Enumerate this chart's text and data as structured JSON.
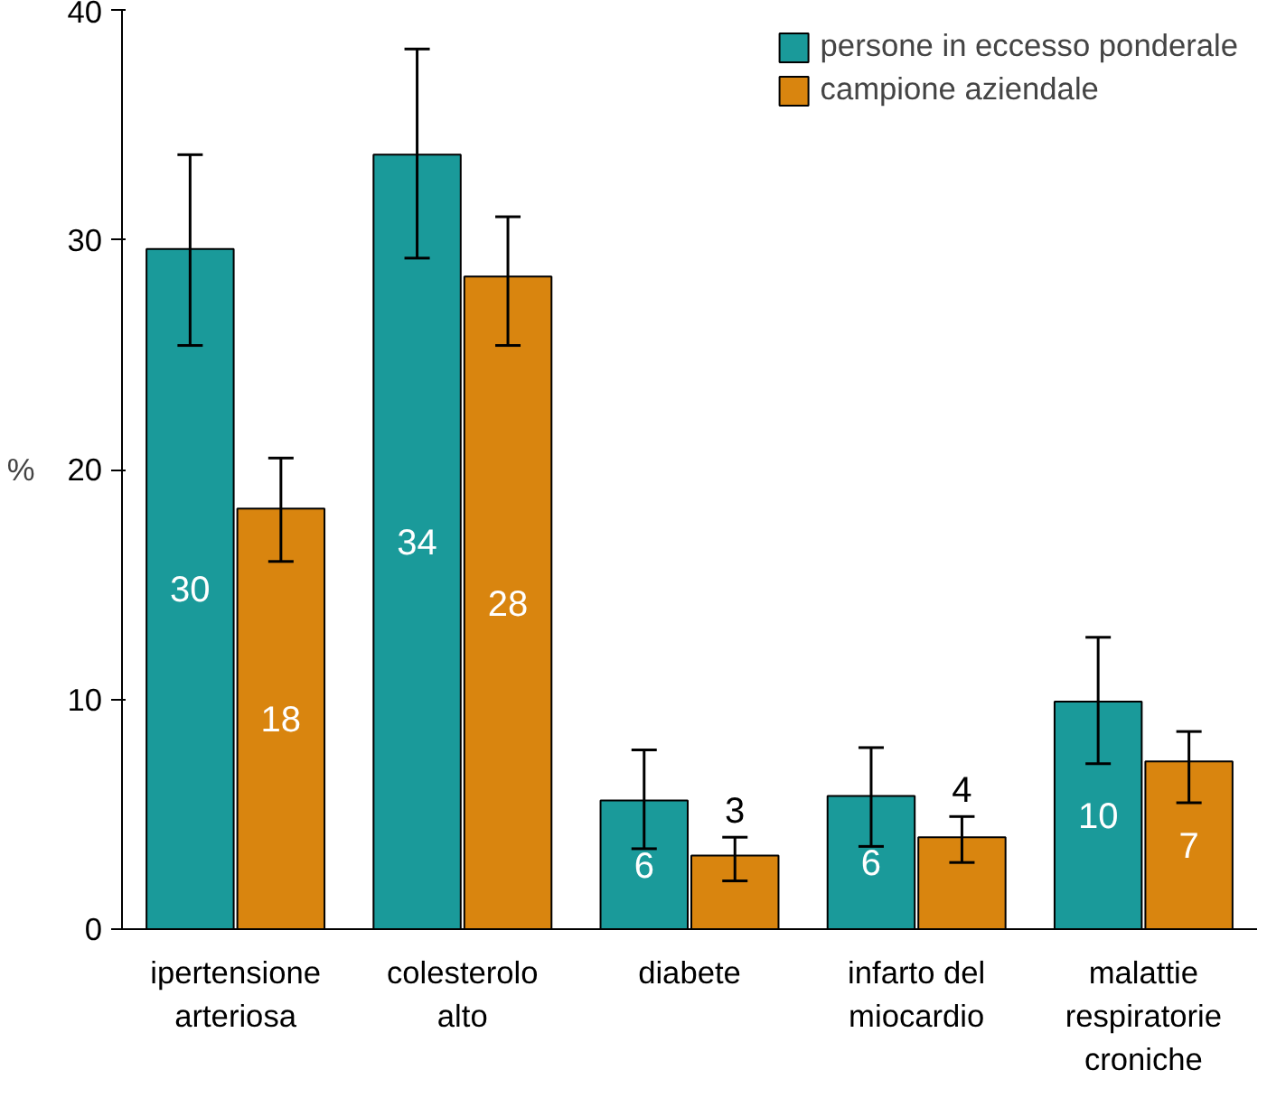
{
  "chart_data": {
    "type": "bar",
    "ylabel": "%",
    "categories": [
      "ipertensione\narteriosa",
      "colesterolo\nalto",
      "diabete",
      "infarto del\nmiocardio",
      "malattie\nrespiratorie\ncroniche"
    ],
    "series": [
      {
        "name": "persone in eccesso ponderale",
        "color": "#1a9a9a",
        "values": [
          29.6,
          33.7,
          5.6,
          5.8,
          9.9
        ],
        "errors": [
          [
            25.4,
            33.7
          ],
          [
            29.2,
            38.3
          ],
          [
            3.5,
            7.8
          ],
          [
            3.6,
            7.9
          ],
          [
            7.2,
            12.7
          ]
        ],
        "value_labels": [
          "30",
          "34",
          "6",
          "6",
          "10"
        ]
      },
      {
        "name": "campione aziendale",
        "color": "#d9850f",
        "values": [
          18.3,
          28.4,
          3.2,
          4.0,
          7.3
        ],
        "errors": [
          [
            16.0,
            20.5
          ],
          [
            25.4,
            31.0
          ],
          [
            2.1,
            4.0
          ],
          [
            2.9,
            4.9
          ],
          [
            5.5,
            8.6
          ]
        ],
        "value_labels": [
          "18",
          "28",
          "3",
          "4",
          "7"
        ]
      }
    ],
    "ylim": [
      0,
      40
    ],
    "yticks": [
      0,
      10,
      20,
      30,
      40
    ],
    "grid": false,
    "legend": "top right"
  }
}
